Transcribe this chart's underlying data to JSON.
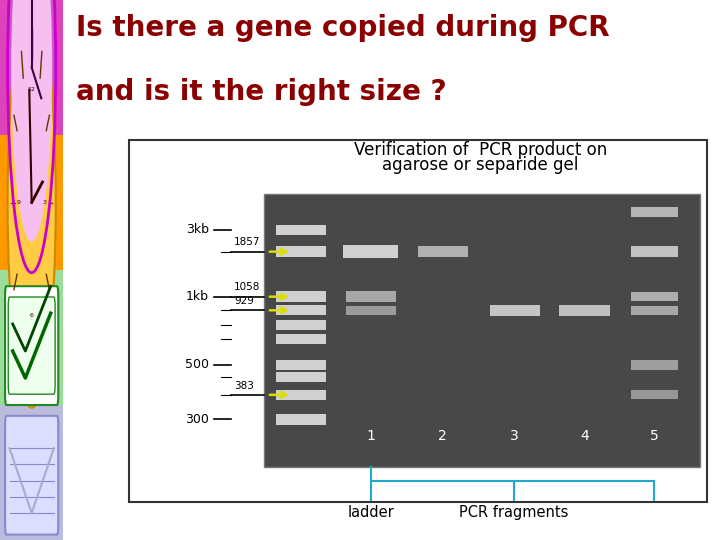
{
  "title_line1": "Is there a gene copied during PCR",
  "title_line2": "and is it the right size ?",
  "title_color": "#8B0000",
  "title_fontsize": 20,
  "bg_color": "#ffffff",
  "left_strip_colors": [
    "#dd44bb",
    "#ff9900",
    "#99dd99",
    "#bbbbdd"
  ],
  "gel_title_line1": "Verification of  PCR product on",
  "gel_title_line2": "agarose or separide gel",
  "gel_title_fontsize": 12,
  "gel_bg": "#4a4a4a",
  "ladder_text": "ladder",
  "pcr_text": "PCR fragments",
  "bracket_color": "#22aacc",
  "yellow_color": "#dddd00"
}
